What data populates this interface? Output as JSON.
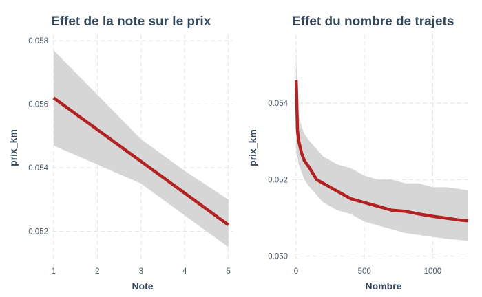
{
  "colors": {
    "line": "#b22222",
    "band": "#d6d6d6",
    "text": "#34495e"
  },
  "chart_data": [
    {
      "type": "line",
      "title": "Effet de la note sur le prix",
      "xlabel": "Note",
      "ylabel": "prix_km",
      "xlim": [
        0.97,
        5.1
      ],
      "ylim": [
        0.0511,
        0.0582
      ],
      "xticks": [
        1,
        2,
        3,
        4,
        5
      ],
      "yticks": [
        0.052,
        0.054,
        0.056,
        0.058
      ],
      "xtick_labels": [
        "1",
        "2",
        "3",
        "4",
        "5"
      ],
      "ytick_labels": [
        "0.052",
        "0.054",
        "0.056",
        "0.058"
      ],
      "grid": true,
      "series": [
        {
          "x": [
            1,
            2,
            3,
            4,
            5
          ],
          "y": [
            0.0562,
            0.0552,
            0.0542,
            0.0532,
            0.0522
          ],
          "lower": [
            0.0547,
            0.0541,
            0.0535,
            0.0525,
            0.0515
          ],
          "upper": [
            0.0577,
            0.0563,
            0.0549,
            0.0539,
            0.053
          ]
        }
      ]
    },
    {
      "type": "line",
      "title": "Effet du nombre de trajets",
      "xlabel": "Nombre",
      "ylabel": "prix_km",
      "xlim": [
        -30,
        1280
      ],
      "ylim": [
        0.0499,
        0.0558
      ],
      "xticks": [
        0,
        500,
        1000
      ],
      "yticks": [
        0.05,
        0.052,
        0.054
      ],
      "xtick_labels": [
        "0",
        "500",
        "1000"
      ],
      "ytick_labels": [
        "0.050",
        "0.052",
        "0.054"
      ],
      "grid": true,
      "series": [
        {
          "x": [
            1,
            5,
            10,
            20,
            40,
            60,
            100,
            150,
            200,
            300,
            400,
            500,
            600,
            700,
            800,
            900,
            1000,
            1100,
            1200,
            1260
          ],
          "y": [
            0.0546,
            0.0541,
            0.0533,
            0.053,
            0.0527,
            0.0525,
            0.0523,
            0.052,
            0.0519,
            0.0517,
            0.0515,
            0.0514,
            0.0513,
            0.0512,
            0.05117,
            0.0511,
            0.05104,
            0.05099,
            0.05094,
            0.05092
          ],
          "lower": [
            0.0527,
            0.0527,
            0.0526,
            0.0524,
            0.0522,
            0.052,
            0.0518,
            0.0516,
            0.0514,
            0.0512,
            0.0511,
            0.0509,
            0.0508,
            0.0507,
            0.0506,
            0.05055,
            0.0505,
            0.05045,
            0.05042,
            0.0504
          ],
          "upper": [
            0.0555,
            0.0548,
            0.0543,
            0.0537,
            0.0534,
            0.0532,
            0.053,
            0.0528,
            0.0526,
            0.0524,
            0.0523,
            0.0521,
            0.052,
            0.052,
            0.0519,
            0.0519,
            0.0518,
            0.0518,
            0.05175,
            0.05172
          ]
        }
      ]
    }
  ]
}
